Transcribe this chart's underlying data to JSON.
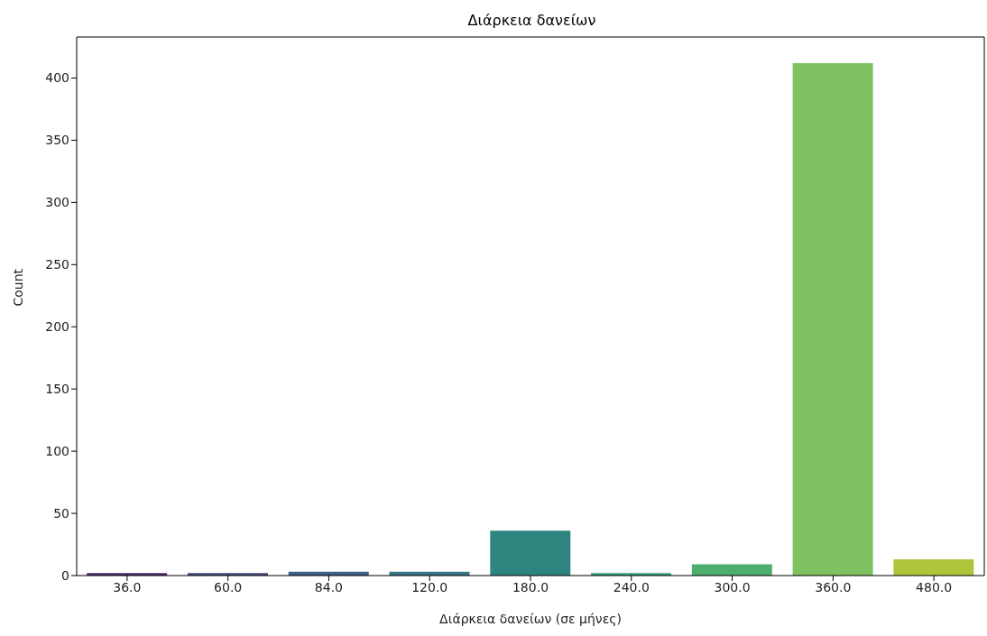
{
  "chart_data": {
    "type": "bar",
    "title": "Διάρκεια δανείων",
    "xlabel": "Διάρκεια δανείων (σε μήνες)",
    "ylabel": "Count",
    "categories": [
      "36.0",
      "60.0",
      "84.0",
      "120.0",
      "180.0",
      "240.0",
      "300.0",
      "360.0",
      "480.0"
    ],
    "values": [
      2,
      2,
      3,
      3,
      36,
      2,
      9,
      412,
      13
    ],
    "colors": [
      "#4b2a73",
      "#45467f",
      "#3e5f86",
      "#357687",
      "#2e8580",
      "#36a17e",
      "#4fae6e",
      "#80c262",
      "#aec63c"
    ],
    "ylim": [
      0,
      433
    ],
    "yticks": [
      0,
      50,
      100,
      150,
      200,
      250,
      300,
      350,
      400
    ],
    "grid": false,
    "legend": false
  }
}
